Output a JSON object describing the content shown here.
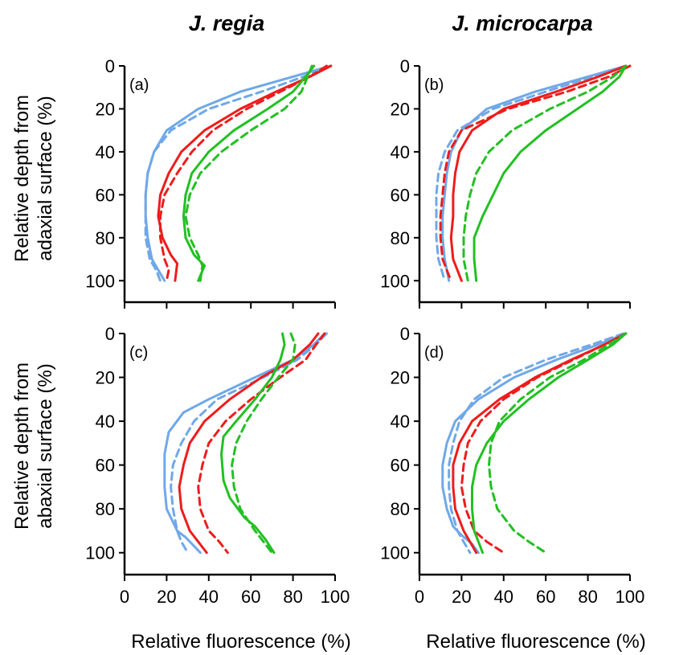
{
  "column_titles": [
    "J. regia",
    "J. microcarpa"
  ],
  "row_ylabels": [
    [
      "Relative depth from",
      "adaxial surface (%)"
    ],
    [
      "Relative depth from",
      "abaxial surface (%)"
    ]
  ],
  "xlabel": "Relative fluorescence (%)",
  "colors": {
    "blue": "#6fa8e8",
    "red": "#ee1c1c",
    "green": "#22c022"
  },
  "chart_data": [
    {
      "type": "line",
      "panel_label": "(a)",
      "xlim": [
        0,
        100
      ],
      "ylim": [
        0,
        110
      ],
      "y_inverted": true,
      "xticks": [
        0,
        20,
        40,
        60,
        80,
        100
      ],
      "yticks": [
        0,
        20,
        40,
        60,
        80,
        100
      ],
      "series": [
        {
          "color": "blue",
          "dashed": false,
          "x": [
            98,
            80,
            55,
            35,
            20,
            14,
            11,
            10,
            10,
            11,
            13,
            16,
            19
          ],
          "y": [
            0,
            5,
            12,
            20,
            30,
            40,
            50,
            60,
            70,
            80,
            90,
            95,
            100
          ]
        },
        {
          "color": "blue",
          "dashed": true,
          "x": [
            98,
            85,
            65,
            40,
            22,
            14,
            11,
            10,
            10,
            10,
            12,
            15,
            17
          ],
          "y": [
            0,
            5,
            12,
            20,
            30,
            40,
            50,
            60,
            70,
            80,
            90,
            95,
            100
          ]
        },
        {
          "color": "red",
          "dashed": false,
          "x": [
            98,
            88,
            72,
            55,
            38,
            27,
            21,
            17,
            16,
            18,
            22,
            25,
            24
          ],
          "y": [
            0,
            5,
            12,
            20,
            30,
            40,
            50,
            60,
            70,
            80,
            88,
            92,
            100
          ]
        },
        {
          "color": "red",
          "dashed": true,
          "x": [
            96,
            88,
            74,
            58,
            42,
            32,
            25,
            19,
            17,
            17,
            19,
            21,
            20
          ],
          "y": [
            0,
            5,
            12,
            20,
            30,
            40,
            50,
            60,
            70,
            80,
            90,
            95,
            100
          ]
        },
        {
          "color": "green",
          "dashed": false,
          "x": [
            90,
            86,
            80,
            68,
            52,
            40,
            32,
            29,
            28,
            29,
            33,
            38,
            35
          ],
          "y": [
            0,
            5,
            12,
            20,
            30,
            40,
            50,
            60,
            70,
            80,
            88,
            93,
            100
          ]
        },
        {
          "color": "green",
          "dashed": true,
          "x": [
            89,
            87,
            84,
            76,
            60,
            46,
            36,
            31,
            29,
            31,
            35,
            37,
            36
          ],
          "y": [
            0,
            5,
            12,
            20,
            30,
            40,
            50,
            60,
            70,
            80,
            88,
            93,
            100
          ]
        }
      ]
    },
    {
      "type": "line",
      "panel_label": "(b)",
      "xlim": [
        0,
        100
      ],
      "ylim": [
        0,
        110
      ],
      "y_inverted": true,
      "xticks": [
        0,
        20,
        40,
        60,
        80,
        100
      ],
      "yticks": [
        0,
        20,
        40,
        60,
        80,
        100
      ],
      "series": [
        {
          "color": "blue",
          "dashed": false,
          "x": [
            98,
            80,
            55,
            32,
            20,
            15,
            13,
            12,
            11,
            11,
            12,
            14
          ],
          "y": [
            0,
            5,
            12,
            20,
            30,
            40,
            50,
            60,
            70,
            80,
            90,
            100
          ]
        },
        {
          "color": "blue",
          "dashed": true,
          "x": [
            98,
            82,
            60,
            35,
            18,
            12,
            9,
            8,
            8,
            8,
            9,
            12
          ],
          "y": [
            0,
            5,
            12,
            20,
            30,
            40,
            50,
            60,
            70,
            80,
            90,
            100
          ]
        },
        {
          "color": "red",
          "dashed": false,
          "x": [
            98,
            85,
            65,
            40,
            25,
            19,
            17,
            16,
            16,
            15,
            16,
            20
          ],
          "y": [
            0,
            5,
            12,
            20,
            30,
            40,
            50,
            60,
            70,
            80,
            90,
            100
          ]
        },
        {
          "color": "red",
          "dashed": true,
          "x": [
            100,
            90,
            70,
            42,
            20,
            14,
            12,
            11,
            10,
            10,
            11,
            15
          ],
          "y": [
            0,
            5,
            12,
            20,
            30,
            40,
            50,
            60,
            70,
            80,
            90,
            100
          ]
        },
        {
          "color": "green",
          "dashed": false,
          "x": [
            98,
            95,
            87,
            75,
            60,
            48,
            40,
            35,
            30,
            26,
            26,
            27
          ],
          "y": [
            0,
            5,
            12,
            20,
            30,
            40,
            50,
            60,
            70,
            80,
            90,
            100
          ]
        },
        {
          "color": "green",
          "dashed": true,
          "x": [
            98,
            92,
            80,
            62,
            44,
            33,
            27,
            24,
            22,
            21,
            21,
            23
          ],
          "y": [
            0,
            5,
            12,
            20,
            30,
            40,
            50,
            60,
            70,
            80,
            90,
            100
          ]
        }
      ]
    },
    {
      "type": "line",
      "panel_label": "(c)",
      "xlim": [
        0,
        100
      ],
      "ylim": [
        0,
        110
      ],
      "y_inverted": true,
      "xticks": [
        0,
        20,
        40,
        60,
        80,
        100
      ],
      "yticks": [
        0,
        20,
        40,
        60,
        80,
        100
      ],
      "series": [
        {
          "color": "blue",
          "dashed": false,
          "x": [
            95,
            90,
            80,
            62,
            40,
            28,
            21,
            19,
            19,
            20,
            25,
            29,
            33,
            36
          ],
          "y": [
            0,
            5,
            12,
            20,
            30,
            36,
            45,
            55,
            70,
            80,
            90,
            93,
            97,
            100
          ]
        },
        {
          "color": "blue",
          "dashed": true,
          "x": [
            96,
            91,
            82,
            66,
            44,
            33,
            27,
            23,
            22,
            23,
            25,
            27,
            30
          ],
          "y": [
            0,
            5,
            12,
            20,
            30,
            40,
            50,
            60,
            70,
            80,
            90,
            95,
            100
          ]
        },
        {
          "color": "red",
          "dashed": false,
          "x": [
            92,
            88,
            80,
            65,
            50,
            38,
            31,
            28,
            26,
            27,
            31,
            35,
            39
          ],
          "y": [
            0,
            5,
            12,
            20,
            30,
            40,
            50,
            60,
            70,
            80,
            90,
            95,
            100
          ]
        },
        {
          "color": "red",
          "dashed": true,
          "x": [
            95,
            91,
            86,
            74,
            60,
            48,
            40,
            37,
            35,
            36,
            40,
            45,
            49
          ],
          "y": [
            0,
            5,
            12,
            20,
            30,
            40,
            50,
            60,
            70,
            80,
            90,
            95,
            100
          ]
        },
        {
          "color": "green",
          "dashed": false,
          "x": [
            75,
            76,
            74,
            70,
            62,
            53,
            47,
            46,
            47,
            50,
            57,
            62,
            67,
            71
          ],
          "y": [
            0,
            5,
            12,
            20,
            30,
            40,
            47,
            55,
            67,
            75,
            84,
            88,
            94,
            100
          ]
        },
        {
          "color": "green",
          "dashed": true,
          "x": [
            79,
            81,
            80,
            73,
            65,
            58,
            53,
            51,
            52,
            55,
            62,
            66,
            70
          ],
          "y": [
            0,
            5,
            12,
            20,
            30,
            40,
            50,
            60,
            70,
            80,
            90,
            95,
            100
          ]
        }
      ]
    },
    {
      "type": "line",
      "panel_label": "(d)",
      "xlim": [
        0,
        100
      ],
      "ylim": [
        0,
        110
      ],
      "y_inverted": true,
      "xticks": [
        0,
        20,
        40,
        60,
        80,
        100
      ],
      "yticks": [
        0,
        20,
        40,
        60,
        80,
        100
      ],
      "series": [
        {
          "color": "blue",
          "dashed": false,
          "x": [
            98,
            85,
            65,
            45,
            28,
            17,
            13,
            11,
            11,
            13,
            16,
            20,
            25,
            28
          ],
          "y": [
            0,
            5,
            12,
            20,
            30,
            40,
            50,
            60,
            70,
            80,
            88,
            92,
            96,
            100
          ]
        },
        {
          "color": "blue",
          "dashed": true,
          "x": [
            97,
            82,
            60,
            40,
            26,
            19,
            16,
            14,
            14,
            15,
            18,
            21,
            24
          ],
          "y": [
            0,
            5,
            12,
            20,
            30,
            40,
            50,
            60,
            70,
            80,
            90,
            95,
            100
          ]
        },
        {
          "color": "red",
          "dashed": false,
          "x": [
            98,
            88,
            72,
            55,
            38,
            25,
            19,
            16,
            16,
            17,
            21,
            24,
            27
          ],
          "y": [
            0,
            5,
            12,
            20,
            30,
            40,
            50,
            60,
            70,
            80,
            90,
            95,
            100
          ]
        },
        {
          "color": "red",
          "dashed": true,
          "x": [
            98,
            88,
            73,
            56,
            40,
            29,
            23,
            21,
            20,
            22,
            26,
            32,
            40
          ],
          "y": [
            0,
            5,
            12,
            20,
            30,
            40,
            50,
            60,
            70,
            80,
            90,
            95,
            100
          ]
        },
        {
          "color": "green",
          "dashed": false,
          "x": [
            98,
            92,
            80,
            66,
            52,
            40,
            32,
            27,
            25,
            25,
            26,
            28,
            30
          ],
          "y": [
            0,
            5,
            12,
            20,
            30,
            40,
            50,
            60,
            70,
            80,
            90,
            95,
            100
          ]
        },
        {
          "color": "green",
          "dashed": true,
          "x": [
            98,
            90,
            78,
            62,
            48,
            38,
            34,
            33,
            34,
            37,
            45,
            52,
            60
          ],
          "y": [
            0,
            5,
            12,
            20,
            30,
            40,
            50,
            60,
            70,
            80,
            90,
            95,
            100
          ]
        }
      ]
    }
  ]
}
